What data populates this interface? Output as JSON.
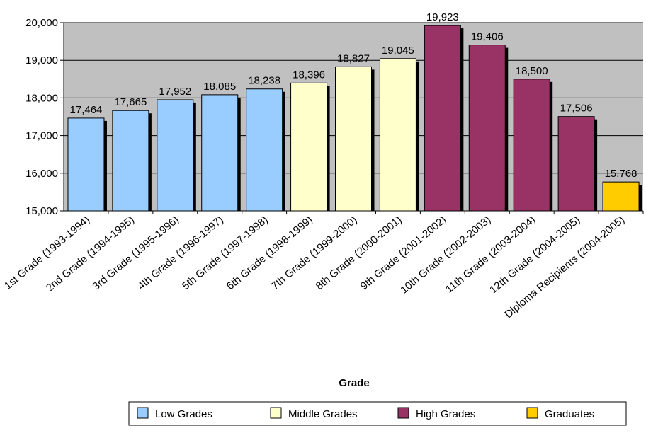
{
  "chart_data": {
    "type": "bar",
    "title": "",
    "xlabel": "Grade",
    "ylabel": "",
    "ylim": [
      15000,
      20000
    ],
    "yticks": [
      "15,000",
      "16,000",
      "17,000",
      "18,000",
      "19,000",
      "20,000"
    ],
    "ytick_values": [
      15000,
      16000,
      17000,
      18000,
      19000,
      20000
    ],
    "grid": true,
    "legend_position": "bottom",
    "categories": [
      "1st Grade (1993-1994)",
      "2nd Grade (1994-1995)",
      "3rd Grade (1995-1996)",
      "4th Grade (1996-1997)",
      "5th Grade (1997-1998)",
      "6th Grade (1998-1999)",
      "7th Grade (1999-2000)",
      "8th Grade (2000-2001)",
      "9th Grade (2001-2002)",
      "10th Grade (2002-2003)",
      "11th Grade (2003-2004)",
      "12th Grade (2004-2005)",
      "Diploma Recipients (2004-2005)"
    ],
    "values": [
      17464,
      17665,
      17952,
      18085,
      18238,
      18396,
      18827,
      19045,
      19923,
      19406,
      18500,
      17506,
      15768
    ],
    "value_labels": [
      "17,464",
      "17,665",
      "17,952",
      "18,085",
      "18,238",
      "18,396",
      "18,827",
      "19,045",
      "19,923",
      "19,406",
      "18,500",
      "17,506",
      "15,768"
    ],
    "bar_groups": [
      0,
      0,
      0,
      0,
      0,
      1,
      1,
      1,
      2,
      2,
      2,
      2,
      3
    ],
    "groups": [
      {
        "name": "Low Grades",
        "color": "#99ccff"
      },
      {
        "name": "Middle Grades",
        "color": "#ffffcc"
      },
      {
        "name": "High Grades",
        "color": "#993366"
      },
      {
        "name": "Graduates",
        "color": "#ffcc00"
      }
    ],
    "plot_background": "#c0c0c0"
  }
}
